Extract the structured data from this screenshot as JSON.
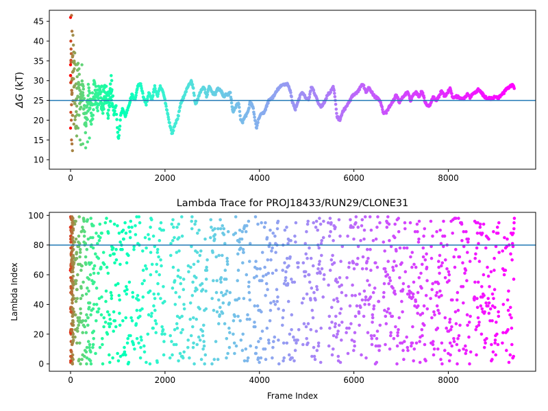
{
  "chart_data": [
    {
      "type": "scatter",
      "title": "",
      "xlabel": "",
      "ylabel": "ΔG (kT)",
      "ylabel_symbol": "ΔG",
      "ylabel_unit": " (kT)",
      "xlim": [
        -450,
        9850
      ],
      "ylim": [
        7.6,
        47.8
      ],
      "x_ticks": [
        0,
        2000,
        4000,
        6000,
        8000
      ],
      "x_tick_labels": [
        "0",
        "2000",
        "4000",
        "6000",
        "8000"
      ],
      "y_ticks": [
        10,
        15,
        20,
        25,
        30,
        35,
        40,
        45
      ],
      "y_tick_labels": [
        "10",
        "15",
        "20",
        "25",
        "30",
        "35",
        "40",
        "45"
      ],
      "reference_line": {
        "y": 25,
        "color": "#1f77b4"
      },
      "colormap": "rainbow (reversed with frame index: red at start, violet at end)",
      "grid": false,
      "legend": "none",
      "frame_count": 9400,
      "trace_anchor_points": [
        [
          0,
          38
        ],
        [
          30,
          25
        ],
        [
          60,
          33
        ],
        [
          100,
          22
        ],
        [
          150,
          29
        ],
        [
          200,
          24
        ],
        [
          260,
          28
        ],
        [
          320,
          17
        ],
        [
          380,
          27
        ],
        [
          440,
          21
        ],
        [
          500,
          27
        ],
        [
          560,
          24
        ],
        [
          620,
          28
        ],
        [
          680,
          25
        ],
        [
          740,
          28
        ],
        [
          800,
          23
        ],
        [
          860,
          28
        ],
        [
          920,
          21
        ],
        [
          960,
          24
        ],
        [
          1000,
          16.5
        ],
        [
          1020,
          15.2
        ],
        [
          1060,
          21
        ],
        [
          1100,
          23
        ],
        [
          1160,
          21
        ],
        [
          1240,
          24
        ],
        [
          1300,
          26.5
        ],
        [
          1360,
          25
        ],
        [
          1420,
          28.5
        ],
        [
          1480,
          29.5
        ],
        [
          1540,
          26
        ],
        [
          1600,
          24
        ],
        [
          1660,
          27
        ],
        [
          1720,
          25
        ],
        [
          1780,
          28.5
        ],
        [
          1840,
          26
        ],
        [
          1900,
          28.5
        ],
        [
          1960,
          27
        ],
        [
          2000,
          25
        ],
        [
          2050,
          22
        ],
        [
          2100,
          19
        ],
        [
          2150,
          16.5
        ],
        [
          2200,
          18.5
        ],
        [
          2280,
          21
        ],
        [
          2340,
          24.5
        ],
        [
          2420,
          26.5
        ],
        [
          2500,
          29
        ],
        [
          2560,
          29.8
        ],
        [
          2600,
          28
        ],
        [
          2640,
          24
        ],
        [
          2700,
          25.5
        ],
        [
          2760,
          27.5
        ],
        [
          2820,
          28.5
        ],
        [
          2880,
          26
        ],
        [
          2940,
          28.5
        ],
        [
          3000,
          27
        ],
        [
          3060,
          26.5
        ],
        [
          3120,
          28
        ],
        [
          3180,
          27.5
        ],
        [
          3240,
          26
        ],
        [
          3300,
          26.5
        ],
        [
          3340,
          26.5
        ],
        [
          3380,
          27
        ],
        [
          3440,
          22
        ],
        [
          3500,
          23.5
        ],
        [
          3560,
          24.5
        ],
        [
          3600,
          20
        ],
        [
          3640,
          19.5
        ],
        [
          3700,
          21
        ],
        [
          3760,
          22
        ],
        [
          3800,
          24.5
        ],
        [
          3860,
          23.5
        ],
        [
          3900,
          20.5
        ],
        [
          3940,
          18
        ],
        [
          4000,
          21
        ],
        [
          4100,
          22
        ],
        [
          4200,
          25
        ],
        [
          4300,
          26
        ],
        [
          4400,
          28
        ],
        [
          4500,
          29
        ],
        [
          4600,
          29.2
        ],
        [
          4660,
          27
        ],
        [
          4700,
          24.5
        ],
        [
          4760,
          22.8
        ],
        [
          4840,
          25.5
        ],
        [
          4900,
          27
        ],
        [
          4960,
          26
        ],
        [
          5040,
          25
        ],
        [
          5100,
          28.5
        ],
        [
          5180,
          26.5
        ],
        [
          5240,
          24.5
        ],
        [
          5300,
          23.5
        ],
        [
          5380,
          24.5
        ],
        [
          5440,
          26.5
        ],
        [
          5500,
          27
        ],
        [
          5560,
          28.5
        ],
        [
          5600,
          26
        ],
        [
          5640,
          21
        ],
        [
          5700,
          20
        ],
        [
          5760,
          22
        ],
        [
          5840,
          23.5
        ],
        [
          5900,
          24.5
        ],
        [
          5960,
          26
        ],
        [
          6020,
          26.5
        ],
        [
          6080,
          27
        ],
        [
          6140,
          28.5
        ],
        [
          6200,
          29
        ],
        [
          6260,
          27
        ],
        [
          6320,
          28.5
        ],
        [
          6380,
          27
        ],
        [
          6440,
          26
        ],
        [
          6500,
          25.5
        ],
        [
          6560,
          25
        ],
        [
          6620,
          22
        ],
        [
          6680,
          21.8
        ],
        [
          6760,
          23.5
        ],
        [
          6840,
          25
        ],
        [
          6900,
          26.5
        ],
        [
          6960,
          24.5
        ],
        [
          7020,
          25.5
        ],
        [
          7080,
          26.5
        ],
        [
          7140,
          27
        ],
        [
          7200,
          25
        ],
        [
          7260,
          26.5
        ],
        [
          7320,
          27
        ],
        [
          7380,
          26
        ],
        [
          7440,
          27.5
        ],
        [
          7500,
          25
        ],
        [
          7560,
          23.5
        ],
        [
          7620,
          24
        ],
        [
          7680,
          26
        ],
        [
          7740,
          25
        ],
        [
          7800,
          26
        ],
        [
          7860,
          27.5
        ],
        [
          7920,
          26
        ],
        [
          7980,
          27
        ],
        [
          8040,
          28
        ],
        [
          8100,
          25.5
        ],
        [
          8160,
          26
        ],
        [
          8220,
          25.8
        ],
        [
          8280,
          25.5
        ],
        [
          8340,
          25.5
        ],
        [
          8400,
          26.5
        ],
        [
          8460,
          25.8
        ],
        [
          8520,
          26.8
        ],
        [
          8580,
          27
        ],
        [
          8640,
          28
        ],
        [
          8700,
          27
        ],
        [
          8760,
          26
        ],
        [
          8820,
          25.5
        ],
        [
          8880,
          25.5
        ],
        [
          8940,
          25.5
        ],
        [
          9000,
          26
        ],
        [
          9060,
          25.5
        ],
        [
          9120,
          26.5
        ],
        [
          9180,
          27
        ],
        [
          9240,
          28
        ],
        [
          9300,
          28.5
        ],
        [
          9360,
          29
        ],
        [
          9400,
          28
        ]
      ],
      "early_scatter_points": [
        [
          0,
          46
        ],
        [
          20,
          46.5
        ],
        [
          5,
          40
        ],
        [
          30,
          42.5
        ],
        [
          50,
          41.5
        ],
        [
          10,
          38
        ],
        [
          0,
          34
        ],
        [
          40,
          36
        ],
        [
          60,
          39
        ],
        [
          25,
          30
        ],
        [
          5,
          22
        ],
        [
          15,
          20
        ],
        [
          0,
          18
        ],
        [
          20,
          15
        ],
        [
          30,
          14
        ],
        [
          40,
          12.3
        ],
        [
          80,
          33
        ],
        [
          90,
          37
        ],
        [
          110,
          34
        ],
        [
          70,
          19
        ],
        [
          130,
          16
        ],
        [
          160,
          18
        ],
        [
          200,
          15
        ],
        [
          220,
          13.8
        ],
        [
          260,
          14
        ],
        [
          320,
          13
        ],
        [
          360,
          14.5
        ],
        [
          400,
          15.5
        ],
        [
          140,
          31
        ],
        [
          180,
          33
        ],
        [
          240,
          34
        ]
      ]
    },
    {
      "type": "scatter",
      "title": "Lambda Trace for PROJ18433/RUN29/CLONE31",
      "xlabel": "Frame Index",
      "ylabel": "Lambda Index",
      "xlim": [
        -450,
        9850
      ],
      "ylim": [
        -5,
        102
      ],
      "x_ticks": [
        0,
        2000,
        4000,
        6000,
        8000
      ],
      "x_tick_labels": [
        "0",
        "2000",
        "4000",
        "6000",
        "8000"
      ],
      "y_ticks": [
        0,
        20,
        40,
        60,
        80,
        100
      ],
      "y_tick_labels": [
        "0",
        "20",
        "40",
        "60",
        "80",
        "100"
      ],
      "reference_line": {
        "y": 80,
        "color": "#1f77b4"
      },
      "colormap": "rainbow (reversed with frame index: red at start, violet at end)",
      "grid": false,
      "legend": "none",
      "value_range": [
        0,
        99
      ],
      "frame_count": 9400,
      "sparse_bands": [
        [
          2000,
          2100
        ],
        [
          2420,
          2480
        ],
        [
          2900,
          2960
        ],
        [
          3380,
          3440
        ],
        [
          3820,
          3880
        ],
        [
          4420,
          4480
        ],
        [
          4840,
          4900
        ],
        [
          5380,
          5440
        ],
        [
          5760,
          5820
        ],
        [
          6560,
          6620
        ],
        [
          7560,
          7620
        ],
        [
          8480,
          8540
        ],
        [
          9080,
          9140
        ]
      ]
    }
  ]
}
